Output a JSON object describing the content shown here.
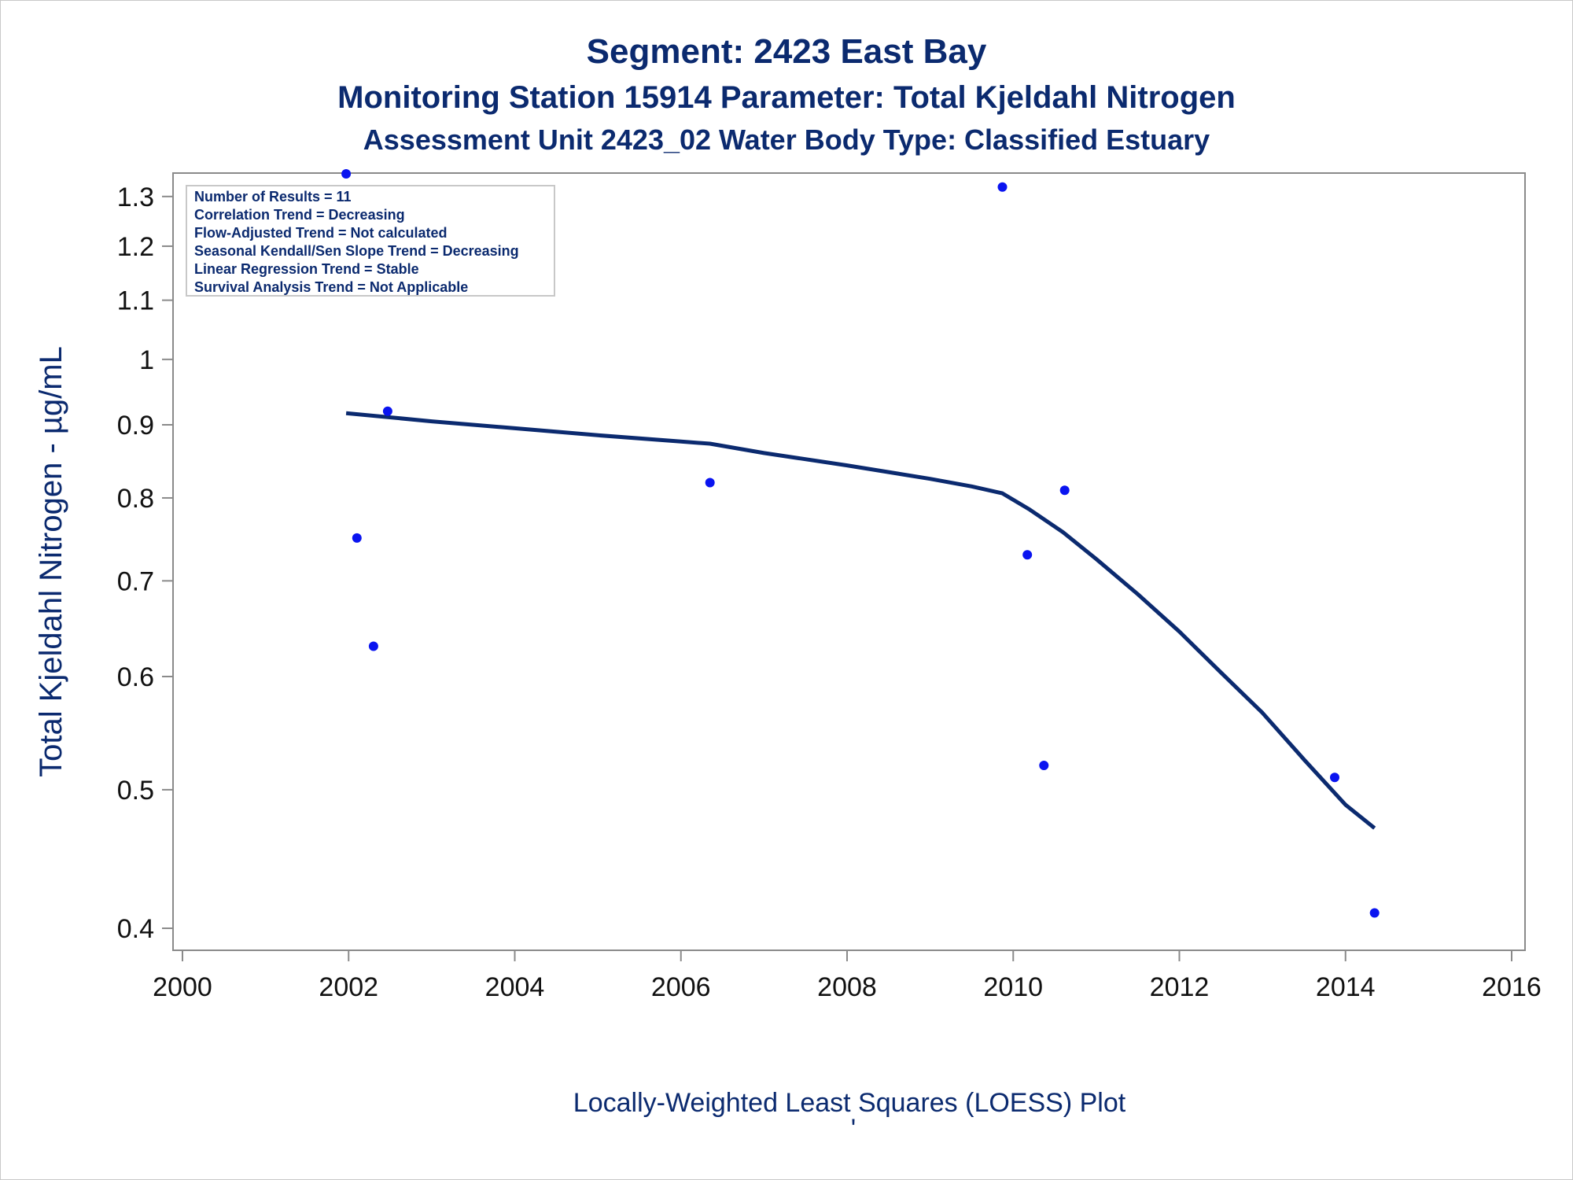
{
  "titles": {
    "line1": "Segment: 2423  East Bay",
    "line2": "Monitoring Station 15914 Parameter: Total Kjeldahl Nitrogen",
    "line3": "Assessment Unit 2423_02   Water Body Type: Classified Estuary"
  },
  "stats": [
    "Number of Results = 11",
    "Correlation Trend = Decreasing",
    "Flow-Adjusted Trend = Not calculated",
    "Seasonal Kendall/Sen Slope Trend = Decreasing",
    "Linear Regression Trend = Stable",
    "Survival Analysis Trend = Not Applicable"
  ],
  "footer": {
    "text": "Locally-Weighted Least Squares (LOESS) Plot",
    "mark": "'"
  },
  "chart_data": {
    "type": "scatter",
    "ylabel": "Total Kjeldahl Nitrogen -  µg/mL",
    "xlabel": "",
    "xlim": [
      2000,
      2016
    ],
    "ylim": [
      0.39,
      1.35
    ],
    "yscale": "log",
    "xticks": [
      2000,
      2002,
      2004,
      2006,
      2008,
      2010,
      2012,
      2014,
      2016
    ],
    "yticks": [
      0.4,
      0.5,
      0.6,
      0.7,
      0.8,
      0.9,
      1,
      1.1,
      1.2,
      1.3
    ],
    "ytick_labels": [
      "0.4",
      "0.5",
      "0.6",
      "0.7",
      "0.8",
      "0.9",
      "1",
      "1.1",
      "1.2",
      "1.3"
    ],
    "grid": false,
    "legend": "top-left",
    "series": [
      {
        "type": "scatter",
        "color": "#0a14f0",
        "points": [
          {
            "x": 2001.97,
            "y": 1.36
          },
          {
            "x": 2002.1,
            "y": 0.75
          },
          {
            "x": 2002.3,
            "y": 0.63
          },
          {
            "x": 2002.47,
            "y": 0.92
          },
          {
            "x": 2006.35,
            "y": 0.82
          },
          {
            "x": 2009.87,
            "y": 1.32
          },
          {
            "x": 2010.17,
            "y": 0.73
          },
          {
            "x": 2010.37,
            "y": 0.52
          },
          {
            "x": 2010.62,
            "y": 0.81
          },
          {
            "x": 2013.87,
            "y": 0.51
          },
          {
            "x": 2014.35,
            "y": 0.41
          }
        ]
      },
      {
        "type": "line",
        "color": "#0b2a6f",
        "points": [
          {
            "x": 2001.97,
            "y": 0.917
          },
          {
            "x": 2003.0,
            "y": 0.905
          },
          {
            "x": 2004.0,
            "y": 0.895
          },
          {
            "x": 2005.0,
            "y": 0.885
          },
          {
            "x": 2006.0,
            "y": 0.876
          },
          {
            "x": 2006.35,
            "y": 0.873
          },
          {
            "x": 2007.0,
            "y": 0.86
          },
          {
            "x": 2008.0,
            "y": 0.843
          },
          {
            "x": 2009.0,
            "y": 0.825
          },
          {
            "x": 2009.5,
            "y": 0.815
          },
          {
            "x": 2009.87,
            "y": 0.806
          },
          {
            "x": 2010.2,
            "y": 0.785
          },
          {
            "x": 2010.6,
            "y": 0.757
          },
          {
            "x": 2011.0,
            "y": 0.725
          },
          {
            "x": 2011.5,
            "y": 0.685
          },
          {
            "x": 2012.0,
            "y": 0.645
          },
          {
            "x": 2012.5,
            "y": 0.604
          },
          {
            "x": 2013.0,
            "y": 0.566
          },
          {
            "x": 2013.5,
            "y": 0.525
          },
          {
            "x": 2014.0,
            "y": 0.488
          },
          {
            "x": 2014.35,
            "y": 0.47
          }
        ]
      }
    ]
  }
}
